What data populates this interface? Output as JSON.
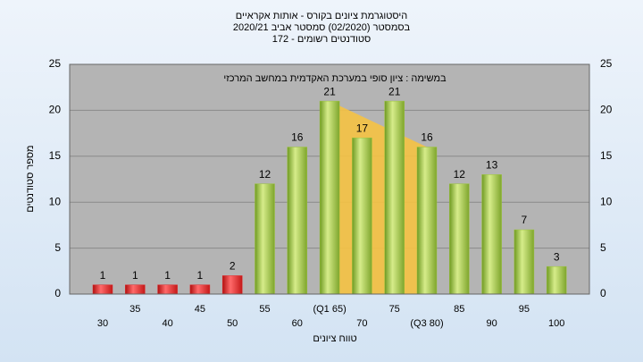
{
  "chart_data": {
    "type": "bar",
    "title": "היסטוגרמת ציונים בקורס - אותות אקראיים",
    "subtitle": "בסמסטר  (02/2020)  סמסטר אביב 2020/21",
    "subtitle2": "סטודנטים רשומים - 172",
    "annotation": "במשימה : ציון סופי במערכת האקדמית במחשב המרכזי",
    "y_label": "מספר סטודנטים",
    "x_label": "טווח ציונים",
    "categories": [
      "30",
      "35",
      "40",
      "45",
      "50",
      "55",
      "60",
      "(Q1 65)",
      "70",
      "75",
      "(Q3 80)",
      "85",
      "90",
      "95",
      "100"
    ],
    "values": [
      1,
      1,
      1,
      1,
      2,
      12,
      16,
      21,
      17,
      21,
      16,
      12,
      13,
      7,
      3
    ],
    "colors": [
      "#e0292b",
      "#e0292b",
      "#e0292b",
      "#e0292b",
      "#e0292b",
      "#9cc43c",
      "#9cc43c",
      "#9cc43c",
      "#9cc43c",
      "#9cc43c",
      "#9cc43c",
      "#9cc43c",
      "#9cc43c",
      "#9cc43c",
      "#9cc43c"
    ],
    "ylim": [
      0,
      25
    ],
    "yticks": [
      0,
      5,
      10,
      15,
      20,
      25
    ],
    "grid": true
  }
}
